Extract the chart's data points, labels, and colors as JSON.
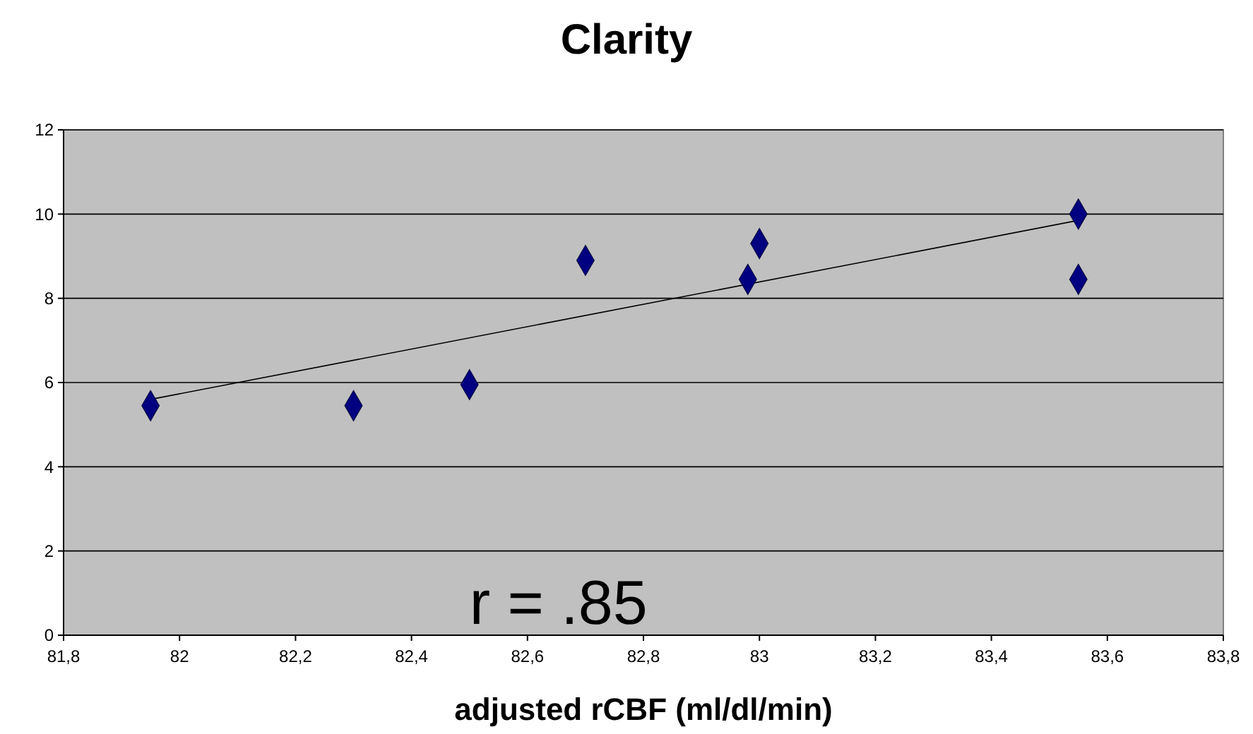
{
  "chart_data": {
    "type": "scatter",
    "title": "Clarity",
    "xlabel": "adjusted rCBF (ml/dl/min)",
    "xlim": [
      81.8,
      83.8
    ],
    "xticks": [
      {
        "value": 81.8,
        "label": "81,8"
      },
      {
        "value": 82,
        "label": "82"
      },
      {
        "value": 82.2,
        "label": "82,2"
      },
      {
        "value": 82.4,
        "label": "82,4"
      },
      {
        "value": 82.6,
        "label": "82,6"
      },
      {
        "value": 82.8,
        "label": "82,8"
      },
      {
        "value": 83,
        "label": "83"
      },
      {
        "value": 83.2,
        "label": "83,2"
      },
      {
        "value": 83.4,
        "label": "83,4"
      },
      {
        "value": 83.6,
        "label": "83,6"
      },
      {
        "value": 83.8,
        "label": "83,8"
      }
    ],
    "ylim": [
      0,
      12
    ],
    "yticks": [
      0,
      2,
      4,
      6,
      8,
      10,
      12
    ],
    "grid": "y",
    "series": [
      {
        "type": "scatter",
        "color": "#000080",
        "marker": "diamond",
        "x": [
          81.95,
          82.3,
          82.5,
          82.7,
          82.98,
          83.0,
          83.55,
          83.55
        ],
        "values": [
          5.45,
          5.45,
          5.95,
          8.9,
          8.45,
          9.3,
          10.0,
          8.45
        ]
      },
      {
        "type": "line",
        "color": "#000000",
        "marker": "none",
        "x": [
          81.95,
          83.55
        ],
        "values": [
          5.6,
          9.85
        ]
      }
    ],
    "annotations": [
      "r = .85"
    ]
  }
}
